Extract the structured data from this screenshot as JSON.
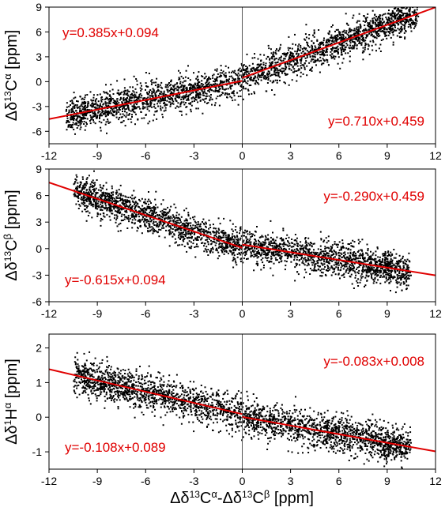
{
  "figure": {
    "xlabel": "Δδ13Cα-Δδ13Cβ [ppm]",
    "xlabel_parts": [
      "Δδ",
      "13",
      "C",
      "α",
      "-Δδ",
      "13",
      "C",
      "β",
      " [ppm]"
    ]
  },
  "colors": {
    "points": "#000000",
    "fit": "#e00000",
    "axis": "#000000"
  },
  "chart_data": [
    {
      "type": "scatter",
      "id": "calpha",
      "ylabel": "Δδ13Cα [ppm]",
      "ylabel_parts": [
        "Δδ",
        "13",
        "C",
        "α",
        " [ppm]"
      ],
      "xlim": [
        -12,
        12
      ],
      "ylim": [
        -7.5,
        9
      ],
      "xticks": [
        -12,
        -9,
        -6,
        -3,
        0,
        3,
        6,
        9,
        12
      ],
      "yticks": [
        -6,
        -3,
        0,
        3,
        6,
        9
      ],
      "grid": false,
      "cloud": {
        "xrange": [
          -11,
          11
        ],
        "spread": 1.2,
        "n": 2800
      },
      "fits": [
        {
          "label": "y=0.385x+0.094",
          "slope": 0.385,
          "intercept": 0.094,
          "xrange": [
            -12,
            0
          ],
          "label_at": "top-left"
        },
        {
          "label": "y=0.710x+0.459",
          "slope": 0.71,
          "intercept": 0.459,
          "xrange": [
            0,
            12
          ],
          "label_at": "bottom-right"
        }
      ]
    },
    {
      "type": "scatter",
      "id": "cbeta",
      "ylabel": "Δδ13Cβ [ppm]",
      "ylabel_parts": [
        "Δδ",
        "13",
        "C",
        "β",
        " [ppm]"
      ],
      "xlim": [
        -12,
        12
      ],
      "ylim": [
        -6,
        9
      ],
      "xticks": [
        -12,
        -9,
        -6,
        -3,
        0,
        3,
        6,
        9,
        12
      ],
      "yticks": [
        -6,
        -3,
        0,
        3,
        6,
        9
      ],
      "grid": false,
      "cloud": {
        "xrange": [
          -10.5,
          10.5
        ],
        "spread": 1.1,
        "n": 2800
      },
      "fits": [
        {
          "label": "y=-0.615x+0.094",
          "slope": -0.615,
          "intercept": 0.094,
          "xrange": [
            -12,
            0
          ],
          "label_at": "bottom-left"
        },
        {
          "label": "y=-0.290x+0.459",
          "slope": -0.29,
          "intercept": 0.459,
          "xrange": [
            0,
            12
          ],
          "label_at": "top-right"
        }
      ]
    },
    {
      "type": "scatter",
      "id": "halpha",
      "ylabel": "Δδ1Hα [ppm]",
      "ylabel_parts": [
        "Δδ",
        "1",
        "H",
        "α",
        " [ppm]"
      ],
      "xlim": [
        -12,
        12
      ],
      "ylim": [
        -1.5,
        2.4
      ],
      "xticks": [
        -12,
        -9,
        -6,
        -3,
        0,
        3,
        6,
        9,
        12
      ],
      "yticks": [
        -1,
        0,
        1,
        2
      ],
      "grid": false,
      "cloud": {
        "xrange": [
          -10.5,
          10.5
        ],
        "spread": 0.3,
        "n": 2800
      },
      "fits": [
        {
          "label": "y=-0.108x+0.089",
          "slope": -0.108,
          "intercept": 0.089,
          "xrange": [
            -12,
            0
          ],
          "label_at": "bottom-left"
        },
        {
          "label": "y=-0.083x+0.008",
          "slope": -0.083,
          "intercept": 0.008,
          "xrange": [
            0,
            12
          ],
          "label_at": "top-right"
        }
      ]
    }
  ]
}
